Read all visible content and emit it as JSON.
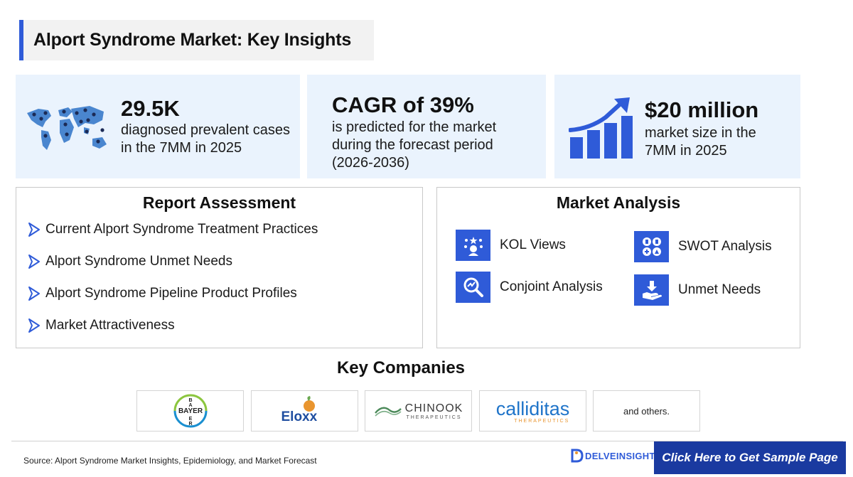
{
  "header": {
    "title": "Alport Syndrome Market: Key Insights"
  },
  "stats": [
    {
      "value": "29.5K",
      "desc_lines": [
        "diagnosed prevalent cases",
        "in the 7MM in 2025"
      ],
      "icon": "world-map-icon"
    },
    {
      "value": "CAGR of 39%",
      "desc_lines": [
        "is predicted for the market",
        "during the forecast period",
        "(2026-2036)"
      ]
    },
    {
      "value": "$20 million",
      "desc_lines": [
        "market size in the",
        "7MM in 2025"
      ],
      "icon": "growth-chart-icon"
    }
  ],
  "report_assessment": {
    "title": "Report Assessment",
    "items": [
      "Current Alport Syndrome Treatment Practices",
      "Alport Syndrome Unmet Needs",
      "Alport Syndrome Pipeline Product Profiles",
      "Market Attractiveness"
    ]
  },
  "market_analysis": {
    "title": "Market Analysis",
    "items": [
      {
        "label": "KOL Views",
        "icon": "kol-icon"
      },
      {
        "label": "SWOT Analysis",
        "icon": "swot-icon"
      },
      {
        "label": "Conjoint Analysis",
        "icon": "conjoint-icon"
      },
      {
        "label": "Unmet Needs",
        "icon": "unmet-needs-icon"
      }
    ]
  },
  "key_companies": {
    "title": "Key Companies",
    "logos": [
      {
        "name": "BAYER",
        "text": "BAYER"
      },
      {
        "name": "Eloxx",
        "text": "Eloxx"
      },
      {
        "name": "CHINOOK",
        "text": "CHINOOK",
        "sub": "THERAPEUTICS"
      },
      {
        "name": "calliditas",
        "text": "calliditas",
        "sub": "THERAPEUTICS"
      },
      {
        "name": "others",
        "text": "and others."
      }
    ]
  },
  "footer": {
    "source": "Source: Alport Syndrome Market Insights, Epidemiology, and Market Forecast",
    "brand": "DELVEINSIGHT",
    "cta": "Click Here to Get Sample Page"
  },
  "colors": {
    "accent": "#2f5bd8",
    "stat_bg": "#eaf3fd",
    "cta_bg": "#1a3aa0",
    "calliditas_blue": "#1f74c9",
    "calliditas_orange": "#e9952f",
    "chinook_green": "#4c8a5a",
    "bayer_green": "#8cc63f",
    "bayer_blue": "#1a8fd0"
  }
}
